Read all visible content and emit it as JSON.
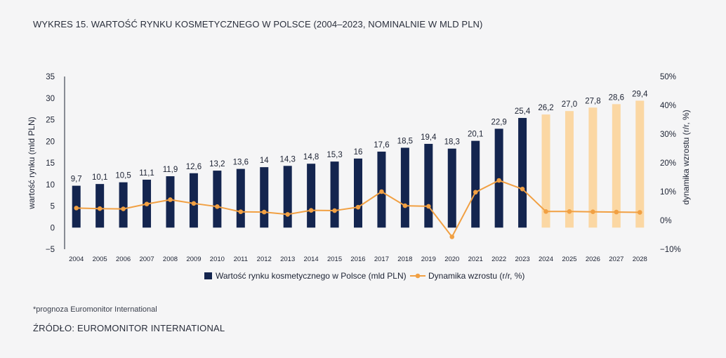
{
  "title": "WYKRES 15. WARTOŚĆ RYNKU KOSMETYCZNEGO W POLSCE (2004–2023, NOMINALNIE W MLD PLN)",
  "footnote": "*prognoza Euromonitor International",
  "source": "ŹRÓDŁO: EUROMONITOR INTERNATIONAL",
  "colors": {
    "bar_actual": "#14254f",
    "bar_forecast": "#fbd7a3",
    "line": "#f1a043",
    "axis": "#1c2233",
    "background": "#f5f5f6"
  },
  "chart_data": {
    "type": "bar",
    "categories": [
      "2004",
      "2005",
      "2006",
      "2007",
      "2008",
      "2009",
      "2010",
      "2011",
      "2012",
      "2013",
      "2014",
      "2015",
      "2016",
      "2017",
      "2018",
      "2019",
      "2020",
      "2021",
      "2022",
      "2023",
      "2024",
      "2025",
      "2026",
      "2027",
      "2028"
    ],
    "series": [
      {
        "name": "Wartość rynku kosmetycznego w Polsce (mld PLN)",
        "type": "bar",
        "axis": "left",
        "values": [
          9.7,
          10.1,
          10.5,
          11.1,
          11.9,
          12.6,
          13.2,
          13.6,
          14,
          14.3,
          14.8,
          15.3,
          16,
          17.6,
          18.5,
          19.4,
          18.3,
          20.1,
          22.9,
          25.4,
          26.2,
          27.0,
          27.8,
          28.6,
          29.4
        ],
        "labels": [
          "9,7",
          "10,1",
          "10,5",
          "11,1",
          "11,9",
          "12,6",
          "13,2",
          "13,6",
          "14",
          "14,3",
          "14,8",
          "15,3",
          "16",
          "17,6",
          "18,5",
          "19,4",
          "18,3",
          "20,1",
          "22,9",
          "25,4",
          "26,2",
          "27,0",
          "27,8",
          "28,6",
          "29,4"
        ],
        "forecast_from": "2024"
      },
      {
        "name": "Dynamika wzrostu (r/r, %)",
        "type": "line",
        "axis": "right",
        "values": [
          4.3,
          4.1,
          4.0,
          5.7,
          7.2,
          5.9,
          4.8,
          3.0,
          2.9,
          2.1,
          3.5,
          3.4,
          4.6,
          10.0,
          5.1,
          4.9,
          -5.7,
          9.8,
          13.9,
          10.9,
          3.1,
          3.1,
          3.0,
          2.9,
          2.8
        ]
      }
    ],
    "ylabel": "wartość rynku (mld PLN)",
    "y2label": "dynamika wzrostu (r/r, %)",
    "ylim": [
      -5,
      35
    ],
    "y2lim": [
      -10,
      50
    ],
    "yticks": [
      "−5",
      "0",
      "5",
      "10",
      "15",
      "20",
      "25",
      "30",
      "35"
    ],
    "y2ticks": [
      "−10%",
      "0%",
      "10%",
      "20%",
      "30%",
      "40%",
      "50%"
    ],
    "legend_position": "bottom",
    "grid": false
  }
}
